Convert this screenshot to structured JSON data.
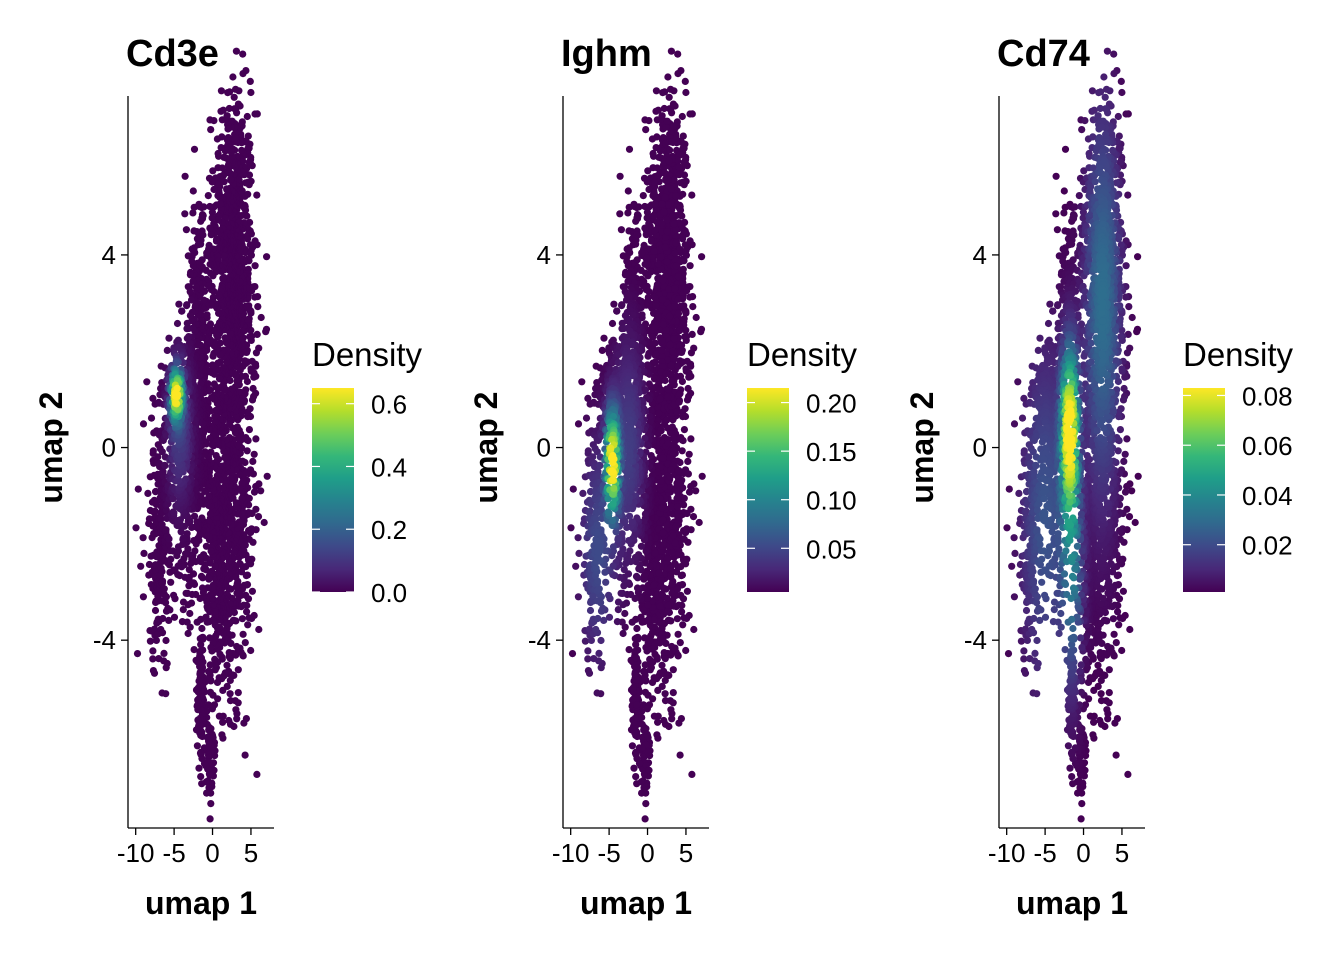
{
  "colors": {
    "background": "#ffffff",
    "axis": "#000000",
    "viridis": [
      "#440154",
      "#482878",
      "#3e4989",
      "#31688e",
      "#26828e",
      "#1f9e89",
      "#35b779",
      "#6ece58",
      "#b5de2b",
      "#fde725"
    ]
  },
  "chart_data": [
    {
      "type": "scatter",
      "title": "Cd3e",
      "xlabel": "umap 1",
      "ylabel": "umap 2",
      "xlim": [
        -11,
        8
      ],
      "ylim": [
        -7.9,
        7.3
      ],
      "x_ticks": [
        -10,
        -5,
        0,
        5
      ],
      "x_tick_labels": [
        "-10",
        "-5",
        "0",
        "5"
      ],
      "y_ticks": [
        -4,
        0,
        4
      ],
      "y_tick_labels": [
        "-4",
        "0",
        "4"
      ],
      "legend": {
        "title": "Density",
        "position": "right",
        "range": [
          0,
          0.65
        ],
        "ticks": [
          0.0,
          0.2,
          0.4,
          0.6
        ],
        "tick_labels": [
          "0.0",
          "0.2",
          "0.4",
          "0.6"
        ]
      },
      "hotspots": [
        {
          "x": -4.7,
          "y": 1.1,
          "sx": 0.5,
          "sy": 0.35,
          "density": 0.62
        },
        {
          "x": -4.3,
          "y": 0.4,
          "sx": 1.0,
          "sy": 1.0,
          "density": 0.12
        }
      ]
    },
    {
      "type": "scatter",
      "title": "Ighm",
      "xlabel": "umap 1",
      "ylabel": "umap 2",
      "xlim": [
        -11,
        8
      ],
      "ylim": [
        -7.9,
        7.3
      ],
      "x_ticks": [
        -10,
        -5,
        0,
        5
      ],
      "x_tick_labels": [
        "-10",
        "-5",
        "0",
        "5"
      ],
      "y_ticks": [
        -4,
        0,
        4
      ],
      "y_tick_labels": [
        "-4",
        "0",
        "4"
      ],
      "legend": {
        "title": "Density",
        "position": "right",
        "range": [
          0.005,
          0.215
        ],
        "ticks": [
          0.05,
          0.1,
          0.15,
          0.2
        ],
        "tick_labels": [
          "0.05",
          "0.10",
          "0.15",
          "0.20"
        ]
      },
      "hotspots": [
        {
          "x": -4.6,
          "y": -0.3,
          "sx": 0.55,
          "sy": 0.7,
          "density": 0.21
        },
        {
          "x": -6.5,
          "y": -2.2,
          "sx": 1.6,
          "sy": 1.6,
          "density": 0.05
        },
        {
          "x": -2.5,
          "y": 0.0,
          "sx": 1.4,
          "sy": 1.6,
          "density": 0.04
        }
      ]
    },
    {
      "type": "scatter",
      "title": "Cd74",
      "xlabel": "umap 1",
      "ylabel": "umap 2",
      "xlim": [
        -11,
        8
      ],
      "ylim": [
        -7.9,
        7.3
      ],
      "x_ticks": [
        -10,
        -5,
        0,
        5
      ],
      "x_tick_labels": [
        "-10",
        "-5",
        "0",
        "5"
      ],
      "y_ticks": [
        -4,
        0,
        4
      ],
      "y_tick_labels": [
        "-4",
        "0",
        "4"
      ],
      "legend": {
        "title": "Density",
        "position": "right",
        "range": [
          0.001,
          0.083
        ],
        "ticks": [
          0.02,
          0.04,
          0.06,
          0.08
        ],
        "tick_labels": [
          "0.02",
          "0.04",
          "0.06",
          "0.08"
        ]
      },
      "hotspots": [
        {
          "x": -1.8,
          "y": 0.4,
          "sx": 0.7,
          "sy": 1.1,
          "density": 0.082
        },
        {
          "x": -1.5,
          "y": -2.5,
          "sx": 0.9,
          "sy": 1.6,
          "density": 0.03
        },
        {
          "x": 2.5,
          "y": 3.0,
          "sx": 1.6,
          "sy": 2.8,
          "density": 0.03
        },
        {
          "x": -5.0,
          "y": -1.5,
          "sx": 2.2,
          "sy": 2.5,
          "density": 0.022
        }
      ]
    }
  ]
}
